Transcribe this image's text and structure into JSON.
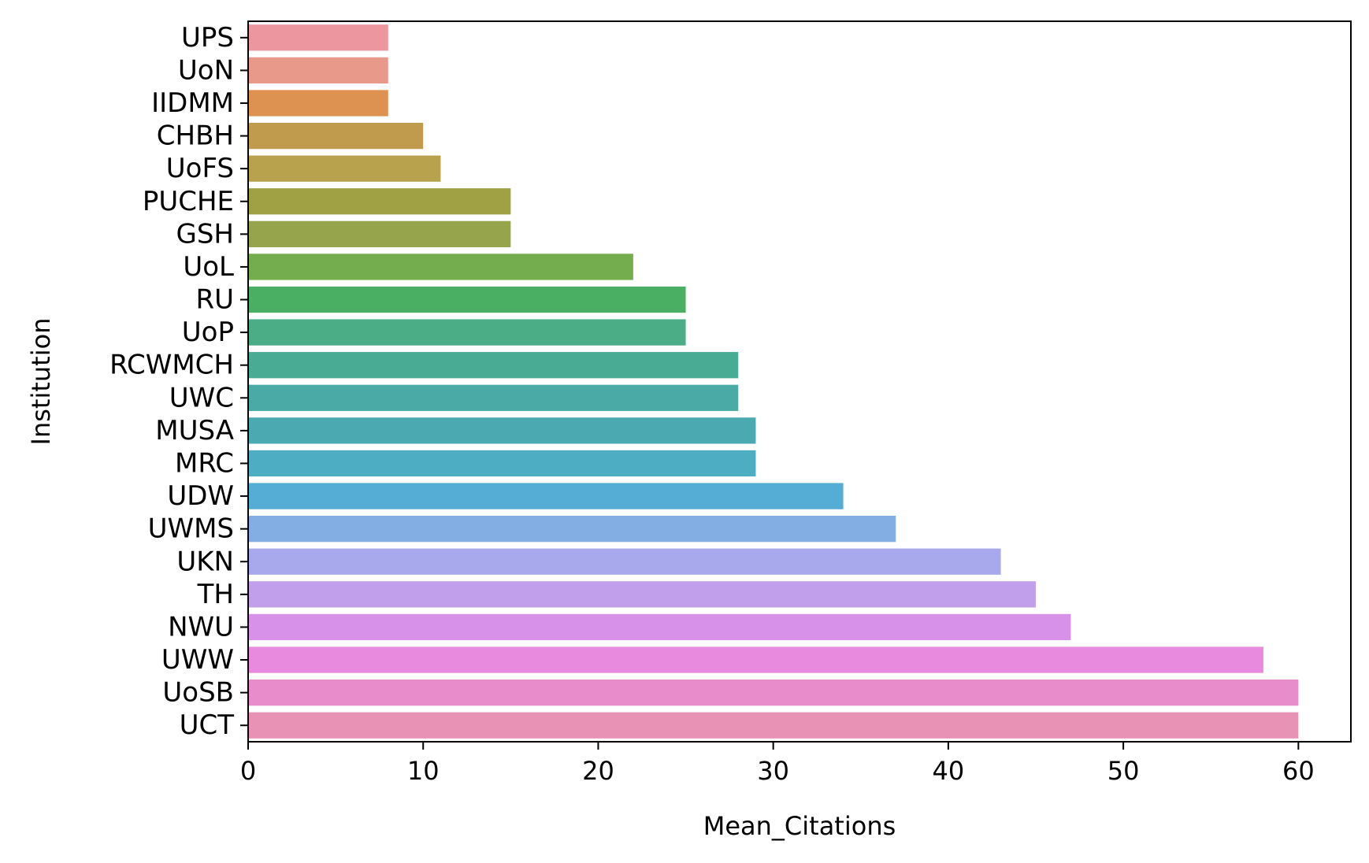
{
  "chart_data": {
    "type": "bar",
    "orientation": "horizontal",
    "xlabel": "Mean_Citations",
    "ylabel": "Institution",
    "xlim": [
      0,
      63
    ],
    "xticks": [
      0,
      10,
      20,
      30,
      40,
      50,
      60
    ],
    "grid": false,
    "legend": "none",
    "categories": [
      "UPS",
      "UoN",
      "IIDMM",
      "CHBH",
      "UoFS",
      "PUCHE",
      "GSH",
      "UoL",
      "RU",
      "UoP",
      "RCWMCH",
      "UWC",
      "MUSA",
      "MRC",
      "UDW",
      "UWMS",
      "UKN",
      "TH",
      "NWU",
      "UWW",
      "UoSB",
      "UCT"
    ],
    "values": [
      8,
      8,
      8,
      10,
      11,
      15,
      15,
      22,
      25,
      25,
      28,
      28,
      29,
      29,
      34,
      37,
      43,
      45,
      47,
      58,
      60,
      60
    ],
    "colors": [
      "#ec96a0",
      "#e9998a",
      "#de9252",
      "#c09a4d",
      "#b8a24d",
      "#a0a045",
      "#96a54b",
      "#74ad4d",
      "#4aae63",
      "#4aad85",
      "#4aab95",
      "#4aaba6",
      "#4ba9b2",
      "#4daec3",
      "#55acd4",
      "#83aee4",
      "#a8a8ec",
      "#c29feb",
      "#d791e9",
      "#e88add",
      "#e88ccc",
      "#e893b6"
    ]
  }
}
